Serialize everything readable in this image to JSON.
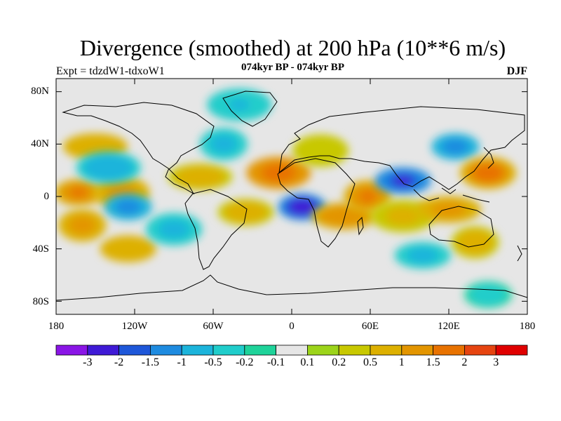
{
  "title": "Divergence (smoothed) at 200 hPa (10**6 m/s)",
  "subtitle": "074kyr BP - 074kyr BP",
  "experiment_label": "Expt = tdzdW1-tdxoW1",
  "season_label": "DJF",
  "colors": {
    "neutral": "#e6e6e6",
    "scale": [
      "#8a15e6",
      "#3f1ad6",
      "#1e57d9",
      "#1e8be0",
      "#1cb4db",
      "#20cdcb",
      "#1fd39a",
      "#e6e6e6",
      "#9cd41a",
      "#c8c800",
      "#ddb000",
      "#e39500",
      "#e87200",
      "#e64410",
      "#e00000"
    ]
  },
  "chart_data": {
    "type": "map-contour",
    "variable": "Divergence (smoothed) at 200 hPa",
    "units": "10**6 m/s",
    "lat_range": [
      -90,
      90
    ],
    "lon_range": [
      -180,
      180
    ],
    "lat_ticks": [
      "80N",
      "40N",
      "0",
      "40S",
      "80S"
    ],
    "lon_ticks": [
      "180",
      "120W",
      "60W",
      "0",
      "60E",
      "120E",
      "180"
    ],
    "colorbar_labels": [
      "-3",
      "-2",
      "-1.5",
      "-1",
      "-0.5",
      "-0.2",
      "-0.1",
      "0.1",
      "0.2",
      "0.5",
      "1",
      "1.5",
      "2",
      "3"
    ],
    "features": [
      {
        "lon": -163,
        "lat": 3,
        "value": 1.6
      },
      {
        "lon": -130,
        "lat": 3,
        "value": 1.4
      },
      {
        "lon": -150,
        "lat": 38,
        "value": 1.0
      },
      {
        "lon": -160,
        "lat": -22,
        "value": 1.2
      },
      {
        "lon": -125,
        "lat": -40,
        "value": 1.0
      },
      {
        "lon": -140,
        "lat": 22,
        "value": -0.8
      },
      {
        "lon": -125,
        "lat": -8,
        "value": -1.2
      },
      {
        "lon": -90,
        "lat": -25,
        "value": -0.6
      },
      {
        "lon": -70,
        "lat": 15,
        "value": 0.9
      },
      {
        "lon": -52,
        "lat": 40,
        "value": -0.6
      },
      {
        "lon": -35,
        "lat": -12,
        "value": 0.8
      },
      {
        "lon": -10,
        "lat": 18,
        "value": 2.0
      },
      {
        "lon": 8,
        "lat": -8,
        "value": -2.5
      },
      {
        "lon": 22,
        "lat": 35,
        "value": 0.5
      },
      {
        "lon": 40,
        "lat": -15,
        "value": 1.5
      },
      {
        "lon": 58,
        "lat": 0,
        "value": 1.6
      },
      {
        "lon": 85,
        "lat": 12,
        "value": -2.2
      },
      {
        "lon": 85,
        "lat": -15,
        "value": 0.6
      },
      {
        "lon": 125,
        "lat": 38,
        "value": -1.2
      },
      {
        "lon": 150,
        "lat": 18,
        "value": 1.8
      },
      {
        "lon": 120,
        "lat": -10,
        "value": 1.2
      },
      {
        "lon": 140,
        "lat": -35,
        "value": 0.8
      },
      {
        "lon": 100,
        "lat": -45,
        "value": -0.6
      },
      {
        "lon": -40,
        "lat": 70,
        "value": -0.5
      },
      {
        "lon": 150,
        "lat": -75,
        "value": -0.3
      }
    ]
  }
}
